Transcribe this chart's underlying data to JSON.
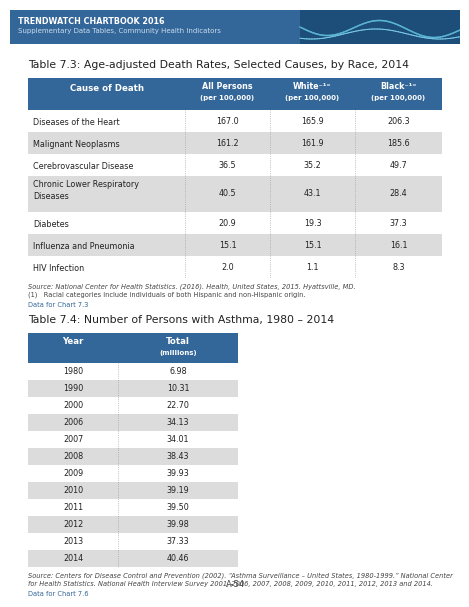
{
  "header_bg": "#336699",
  "header_text_color": "#FFFFFF",
  "alt_row_bg": "#DCDCDC",
  "white_row_bg": "#FFFFFF",
  "page_bg": "#FFFFFF",
  "top_bar_bg": "#336699",
  "top_bar_text1": "TRENDWATCH CHARTBOOK 2016",
  "top_bar_text2": "Supplementary Data Tables, Community Health Indicators",
  "table1_title": "Table 7.3: Age-adjusted Death Rates, Selected Causes, by Race, 2014",
  "table1_rows": [
    [
      "Diseases of the Heart",
      "167.0",
      "165.9",
      "206.3"
    ],
    [
      "Malignant Neoplasms",
      "161.2",
      "161.9",
      "185.6"
    ],
    [
      "Cerebrovascular Disease",
      "36.5",
      "35.2",
      "49.7"
    ],
    [
      "Chronic Lower Respiratory\nDiseases",
      "40.5",
      "43.1",
      "28.4"
    ],
    [
      "Diabetes",
      "20.9",
      "19.3",
      "37.3"
    ],
    [
      "Influenza and Pneumonia",
      "15.1",
      "15.1",
      "16.1"
    ],
    [
      "HIV Infection",
      "2.0",
      "1.1",
      "8.3"
    ]
  ],
  "table1_alt_rows": [
    1,
    3,
    5
  ],
  "table1_source_line1": "Source: National Center for Health Statistics. (2016). Health, United States, 2015. Hyattsville, MD.",
  "table1_source_line2": "(1)   Racial categories include individuals of both Hispanic and non-Hispanic origin.",
  "table1_data_note": "Data for Chart 7.3",
  "table2_title": "Table 7.4: Number of Persons with Asthma, 1980 – 2014",
  "table2_rows": [
    [
      "1980",
      "6.98"
    ],
    [
      "1990",
      "10.31"
    ],
    [
      "2000",
      "22.70"
    ],
    [
      "2006",
      "34.13"
    ],
    [
      "2007",
      "34.01"
    ],
    [
      "2008",
      "38.43"
    ],
    [
      "2009",
      "39.93"
    ],
    [
      "2010",
      "39.19"
    ],
    [
      "2011",
      "39.50"
    ],
    [
      "2012",
      "39.98"
    ],
    [
      "2013",
      "37.33"
    ],
    [
      "2014",
      "40.46"
    ]
  ],
  "table2_alt_rows": [
    1,
    3,
    5,
    7,
    9,
    11
  ],
  "table2_source_line1": "Source: Centers for Disease Control and Prevention (2002). “Asthma Surveillance – United States, 1980-1999.” National Center",
  "table2_source_line2": "for Health Statistics. National Health Interview Survey 2001, 2006, 2007, 2008, 2009, 2010, 2011, 2012, 2013 and 2014.",
  "table2_data_note": "Data for Chart 7.6",
  "page_number": "A-54"
}
